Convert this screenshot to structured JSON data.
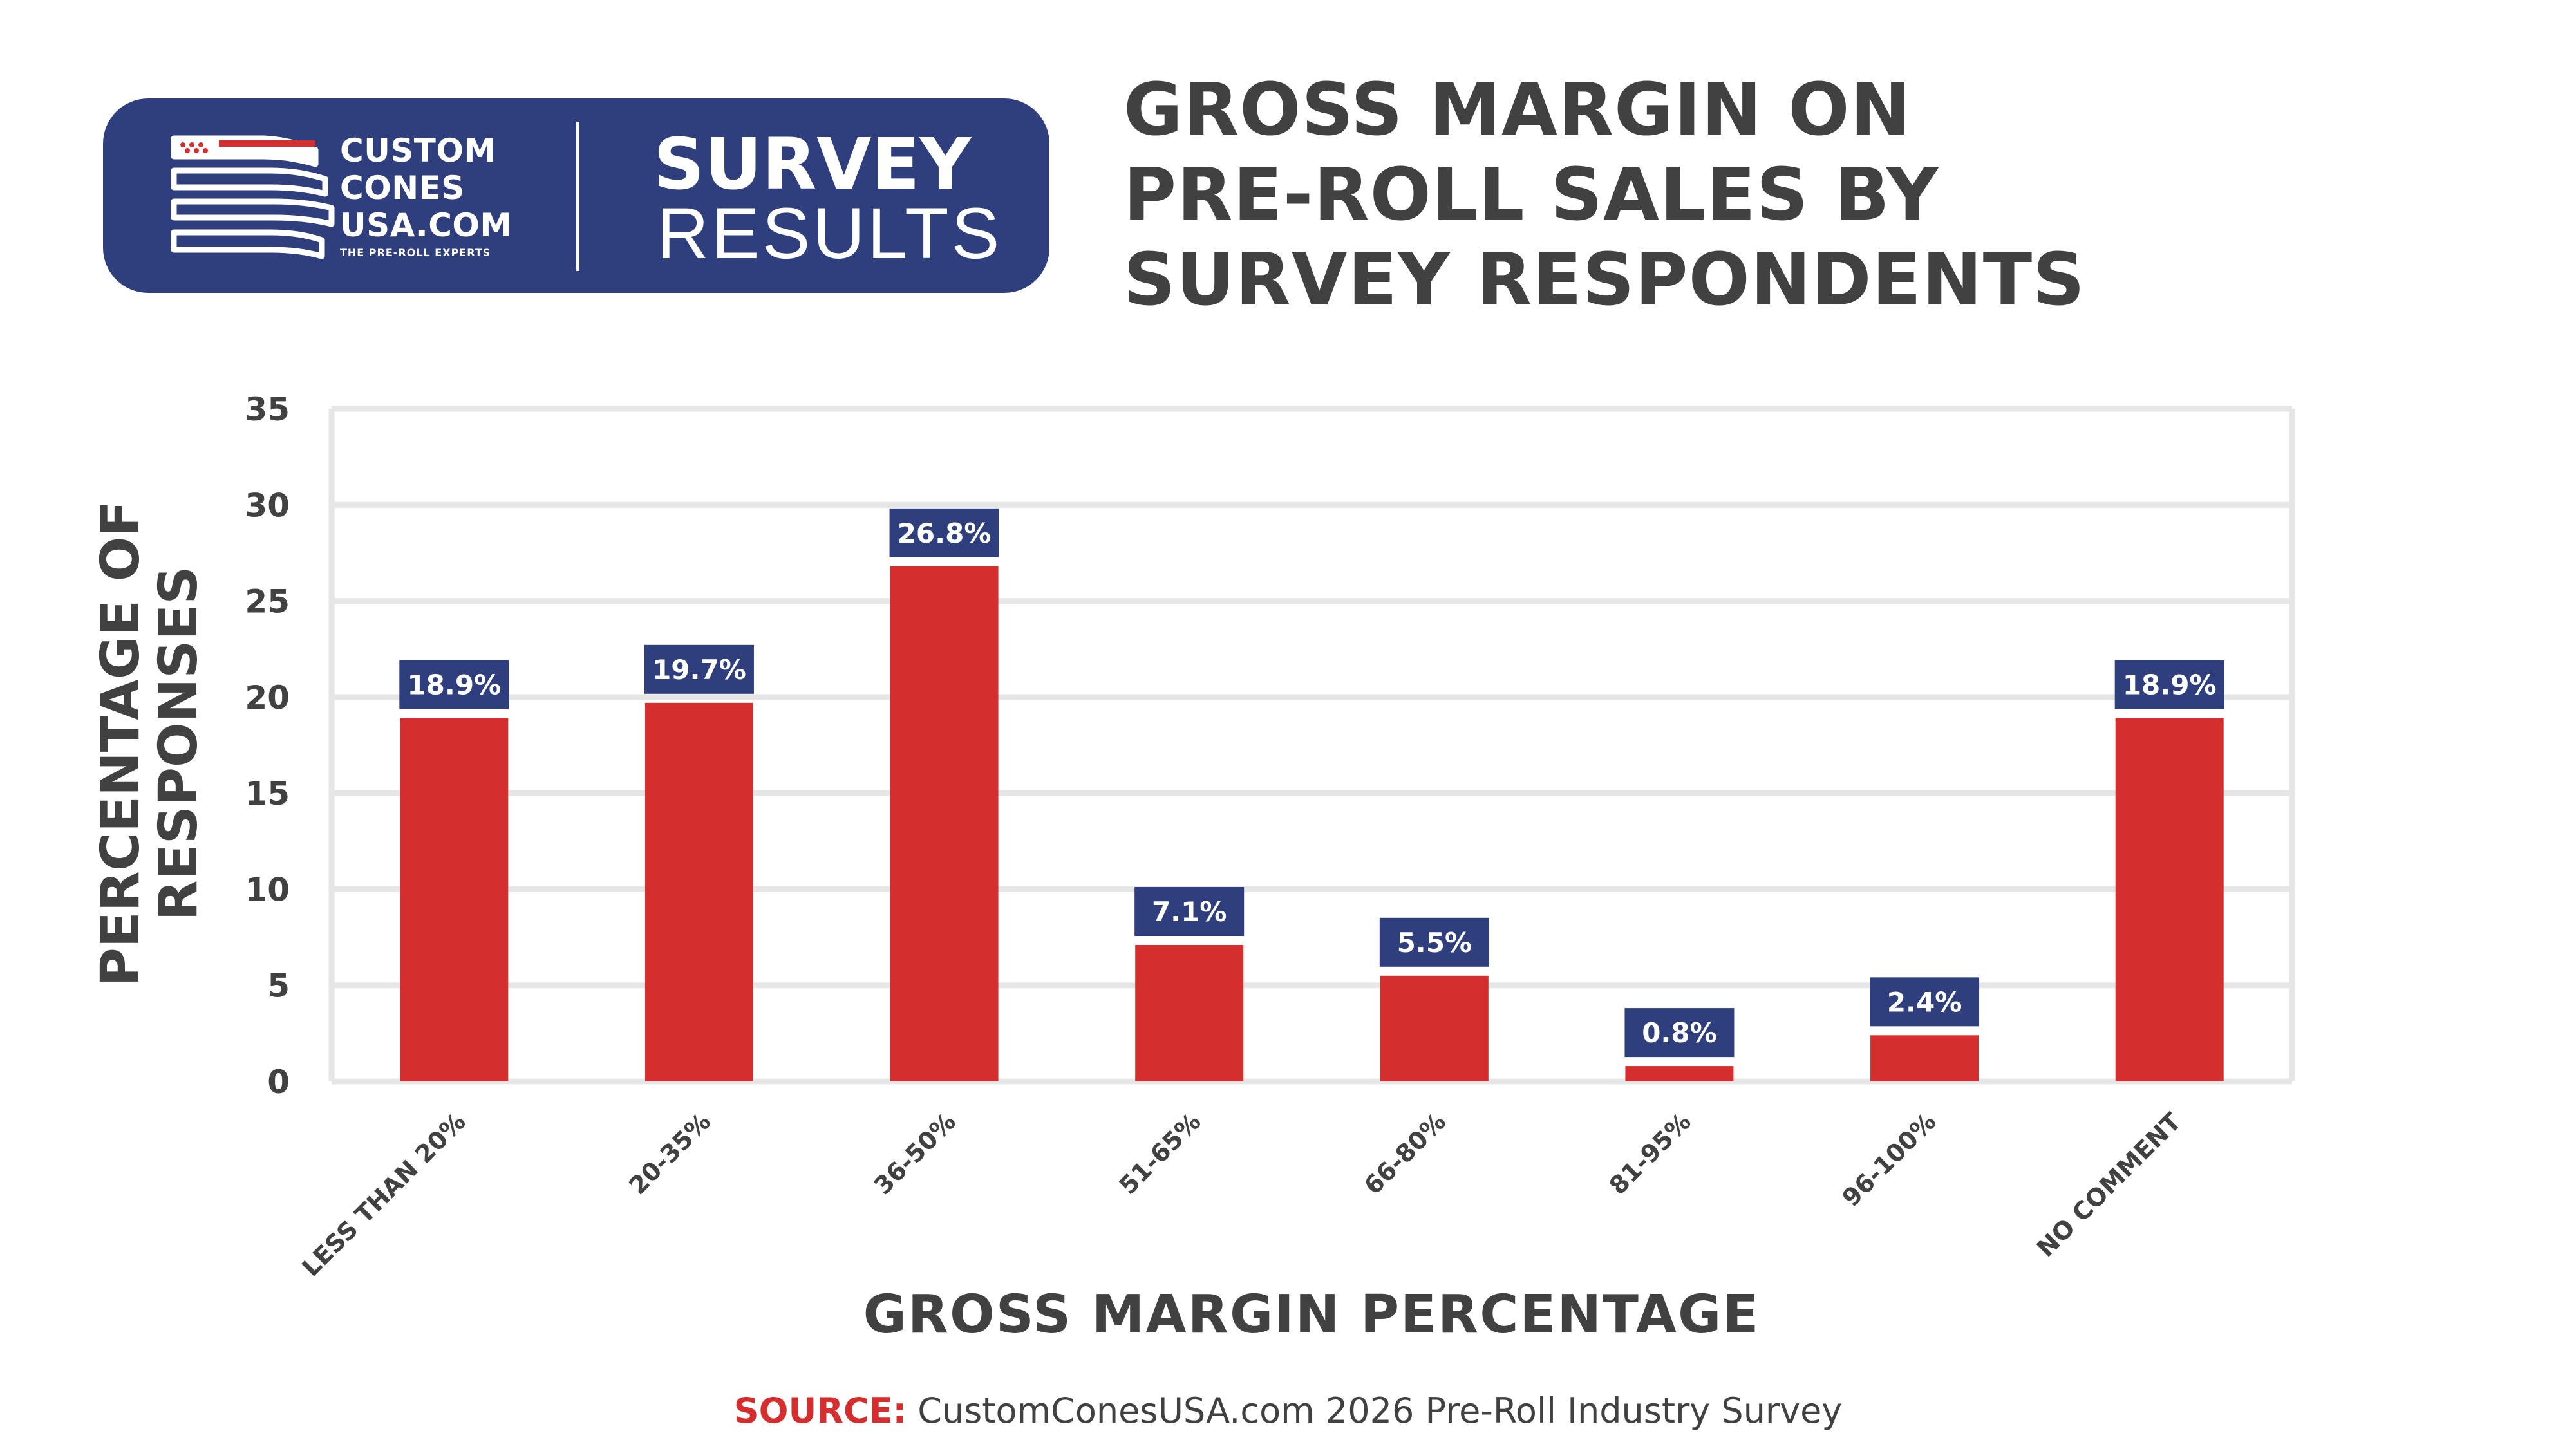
{
  "header": {
    "brand": {
      "line1": "CUSTOM",
      "line2": "CONES",
      "line3": "USA.COM",
      "tagline": "THE PRE-ROLL EXPERTS"
    },
    "badge_title": "SURVEY",
    "badge_subtitle": "RESULTS"
  },
  "colors": {
    "navy": "#2f3e7c",
    "bar_red": "#d42e2e",
    "grid": "#e6e6e6",
    "text": "#414141"
  },
  "chart_data": {
    "type": "bar",
    "title_lines": [
      "GROSS MARGIN ON",
      "PRE-ROLL SALES BY",
      "SURVEY RESPONDENTS"
    ],
    "categories": [
      "LESS THAN 20%",
      "20-35%",
      "36-50%",
      "51-65%",
      "66-80%",
      "81-95%",
      "96-100%",
      "NO COMMENT"
    ],
    "values": [
      18.9,
      19.7,
      26.8,
      7.1,
      5.5,
      0.8,
      2.4,
      18.9
    ],
    "data_labels": [
      "18.9%",
      "19.7%",
      "26.8%",
      "7.1%",
      "5.5%",
      "0.8%",
      "2.4%",
      "18.9%"
    ],
    "xlabel": "GROSS MARGIN PERCENTAGE",
    "ylabel_lines": [
      "PERCENTAGE OF",
      "RESPONSES"
    ],
    "ylim": [
      0,
      35
    ],
    "yticks": [
      0,
      5,
      10,
      15,
      20,
      25,
      30,
      35
    ],
    "grid": true,
    "legend": "none"
  },
  "source": {
    "label": "SOURCE:",
    "text": " CustomConesUSA.com 2026 Pre-Roll Industry Survey"
  }
}
